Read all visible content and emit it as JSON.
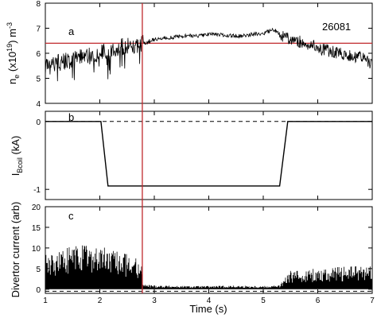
{
  "chart_data": [
    {
      "panel_label": "a",
      "type": "line",
      "annotation": "26081",
      "ylabel": "n_e (x10^19) m^-3",
      "xlim": [
        1,
        7
      ],
      "ylim": [
        4,
        8
      ],
      "yticks": [
        4,
        5,
        6,
        7,
        8
      ],
      "reference_line_y": 6.4,
      "series": [
        {
          "x": [
            1.0,
            1.2,
            1.4,
            1.6,
            1.8,
            2.0,
            2.2,
            2.4,
            2.6,
            2.8,
            3.0,
            3.2,
            3.4,
            3.6,
            3.8,
            4.0,
            4.2,
            4.4,
            4.6,
            4.8,
            5.0,
            5.2,
            5.4,
            5.6,
            5.8,
            6.0,
            6.2,
            6.4,
            6.6,
            6.8,
            7.0
          ],
          "y": [
            5.4,
            5.6,
            5.7,
            5.8,
            5.9,
            6.0,
            6.1,
            6.25,
            6.3,
            6.4,
            6.55,
            6.6,
            6.65,
            6.7,
            6.7,
            6.75,
            6.75,
            6.7,
            6.7,
            6.75,
            6.8,
            6.95,
            6.6,
            6.5,
            6.4,
            6.2,
            6.1,
            6.0,
            5.9,
            5.8,
            5.6
          ]
        }
      ]
    },
    {
      "panel_label": "b",
      "type": "line",
      "ylabel": "I_Bcoil (kA)",
      "xlim": [
        1,
        7
      ],
      "ylim": [
        -1.15,
        0.15
      ],
      "yticks": [
        0,
        -1
      ],
      "reference_line_y": 0,
      "series": [
        {
          "x": [
            1.0,
            2.0,
            2.02,
            2.15,
            5.3,
            5.45,
            5.47,
            7.0
          ],
          "y": [
            0,
            0,
            0,
            -0.95,
            -0.95,
            0,
            0,
            0
          ]
        }
      ]
    },
    {
      "panel_label": "c",
      "type": "area",
      "ylabel": "Divertor current (arb)",
      "xlabel": "Time (s)",
      "xlim": [
        1,
        7
      ],
      "ylim": [
        -1,
        20
      ],
      "yticks": [
        0,
        5,
        10,
        15,
        20
      ],
      "xticks": [
        1,
        2,
        3,
        4,
        5,
        6,
        7
      ],
      "reference_line_y": -0.5,
      "series": [
        {
          "x": [
            1.0,
            1.25,
            1.5,
            1.75,
            2.0,
            2.25,
            2.5,
            2.75,
            2.8,
            3.0,
            3.5,
            4.0,
            4.5,
            5.0,
            5.3,
            5.5,
            6.0,
            6.5,
            7.0
          ],
          "y": [
            8.5,
            9.5,
            10.5,
            11.0,
            10.5,
            9.5,
            8.5,
            7.5,
            1.2,
            1.0,
            0.8,
            0.8,
            0.9,
            0.8,
            1.0,
            4.5,
            5.0,
            5.5,
            6.0
          ]
        }
      ]
    }
  ],
  "cursor": {
    "x": 2.78
  },
  "colors": {
    "trace": "#000000",
    "cursor": "#c0282c",
    "frame": "#000000"
  },
  "panel_letters": {
    "a": "a",
    "b": "b",
    "c": "c"
  },
  "shot": "26081",
  "labels": {
    "ylabel_a_base": "n",
    "ylabel_a_sub": "e",
    "ylabel_a_rest1": " (x10",
    "ylabel_a_sup1": "19",
    "ylabel_a_rest2": ") m",
    "ylabel_a_sup2": "-3",
    "ylabel_b_base": "I",
    "ylabel_b_sub": "Bcoil",
    "ylabel_b_rest": " (kA)",
    "ylabel_c": "Divertor current (arb)",
    "xlabel": "Time (s)"
  },
  "ticks": {
    "a": [
      "4",
      "5",
      "6",
      "7",
      "8"
    ],
    "b": [
      "0",
      "-1"
    ],
    "c": [
      "0",
      "5",
      "10",
      "15",
      "20"
    ],
    "x": [
      "1",
      "2",
      "3",
      "4",
      "5",
      "6",
      "7"
    ]
  }
}
